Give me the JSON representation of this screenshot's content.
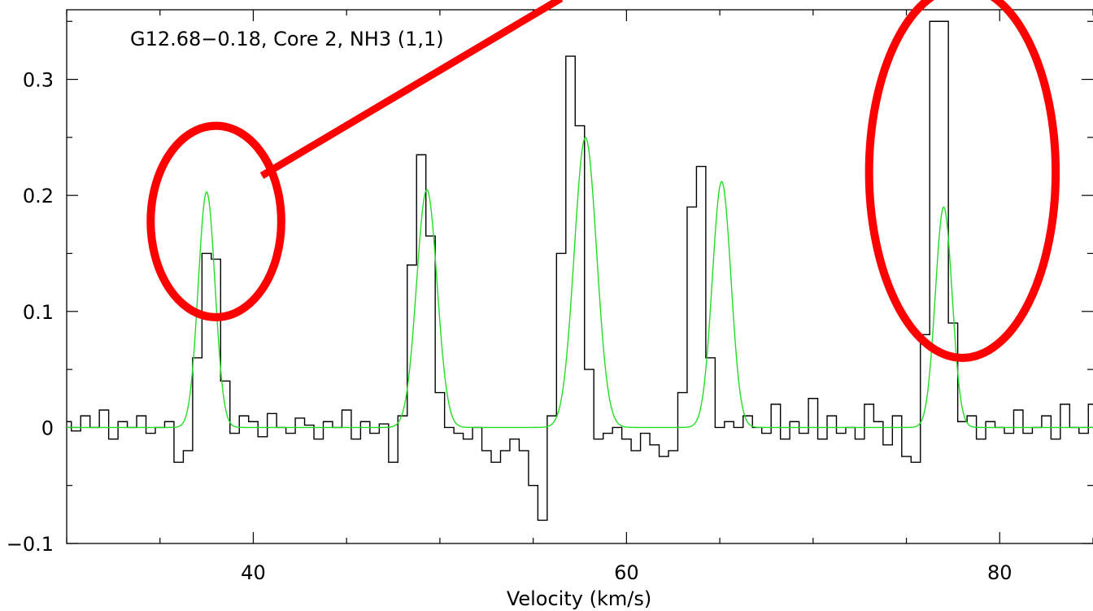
{
  "chart_data": {
    "type": "line",
    "title": "G12.68−0.18, Core 2, NH3 (1,1)",
    "xlabel": "Velocity (km/s)",
    "ylabel": "",
    "xlim": [
      30,
      85
    ],
    "ylim": [
      -0.1,
      0.36
    ],
    "x_ticks": [
      40,
      60,
      80
    ],
    "x_tick_labels": [
      "40",
      "60",
      "80"
    ],
    "y_ticks": [
      -0.1,
      0,
      0.1,
      0.2,
      0.3
    ],
    "y_tick_labels": [
      "−0.1",
      "0",
      "0.1",
      "0.2",
      "0.3"
    ],
    "series": [
      {
        "style": "histogram-step",
        "color": "#000000",
        "x": [
          30.0,
          30.5,
          31.0,
          31.5,
          32.0,
          32.5,
          33.0,
          33.5,
          34.0,
          34.5,
          35.0,
          35.5,
          36.0,
          36.5,
          37.0,
          37.5,
          38.0,
          38.5,
          39.0,
          39.5,
          40.0,
          40.5,
          41.0,
          41.5,
          42.0,
          42.5,
          43.0,
          43.5,
          44.0,
          44.5,
          45.0,
          45.5,
          46.0,
          46.5,
          47.0,
          47.5,
          48.0,
          48.5,
          49.0,
          49.5,
          50.0,
          50.5,
          51.0,
          51.5,
          52.0,
          52.5,
          53.0,
          53.5,
          54.0,
          54.5,
          55.0,
          55.5,
          56.0,
          56.5,
          57.0,
          57.5,
          58.0,
          58.5,
          59.0,
          59.5,
          60.0,
          60.5,
          61.0,
          61.5,
          62.0,
          62.5,
          63.0,
          63.5,
          64.0,
          64.5,
          65.0,
          65.5,
          66.0,
          66.5,
          67.0,
          67.5,
          68.0,
          68.5,
          69.0,
          69.5,
          70.0,
          70.5,
          71.0,
          71.5,
          72.0,
          72.5,
          73.0,
          73.5,
          74.0,
          74.5,
          75.0,
          75.5,
          76.0,
          76.5,
          77.0,
          77.5,
          78.0,
          78.5,
          79.0,
          79.5,
          80.0,
          80.5,
          81.0,
          81.5,
          82.0,
          82.5,
          83.0,
          83.5,
          84.0,
          84.5,
          85.0
        ],
        "y": [
          0.005,
          -0.003,
          0.01,
          0.0,
          0.015,
          -0.01,
          0.005,
          0.0,
          0.01,
          -0.005,
          0.0,
          0.005,
          -0.03,
          -0.02,
          0.06,
          0.15,
          0.145,
          0.04,
          -0.005,
          0.01,
          0.005,
          -0.008,
          0.012,
          0.0,
          -0.005,
          0.008,
          0.002,
          -0.01,
          0.005,
          0.0,
          0.015,
          -0.01,
          0.005,
          -0.005,
          0.003,
          -0.03,
          0.01,
          0.14,
          0.235,
          0.165,
          0.03,
          0.0,
          -0.005,
          -0.01,
          0.0,
          -0.02,
          -0.03,
          -0.02,
          -0.01,
          -0.02,
          -0.05,
          -0.08,
          0.01,
          0.15,
          0.32,
          0.26,
          0.05,
          -0.01,
          -0.005,
          0.0,
          -0.01,
          -0.02,
          -0.005,
          -0.015,
          -0.025,
          -0.02,
          0.03,
          0.19,
          0.225,
          0.06,
          0.0,
          0.005,
          0.0,
          0.01,
          0.0,
          -0.005,
          0.02,
          -0.01,
          0.005,
          -0.005,
          0.025,
          -0.01,
          0.01,
          -0.005,
          0.0,
          -0.01,
          0.02,
          0.005,
          -0.015,
          0.01,
          -0.025,
          -0.03,
          0.08,
          0.35,
          0.35,
          0.09,
          0.005,
          0.01,
          -0.01,
          0.005,
          0.0,
          -0.005,
          0.015,
          -0.005,
          0.0,
          0.01,
          -0.01,
          0.02,
          0.0,
          -0.005,
          0.02
        ]
      },
      {
        "style": "smooth",
        "color": "#22dd22",
        "model": "gaussians",
        "components": [
          {
            "center": 37.5,
            "amplitude": 0.203,
            "sigma": 0.45
          },
          {
            "center": 49.3,
            "amplitude": 0.205,
            "sigma": 0.55
          },
          {
            "center": 57.8,
            "amplitude": 0.25,
            "sigma": 0.6
          },
          {
            "center": 65.1,
            "amplitude": 0.212,
            "sigma": 0.5
          },
          {
            "center": 77.0,
            "amplitude": 0.19,
            "sigma": 0.45
          }
        ]
      }
    ],
    "annotations": [
      {
        "shape": "ellipse",
        "color": "#ff0000",
        "encloses_x": [
          34.5,
          41.5
        ],
        "encloses_y": [
          0.095,
          0.26
        ]
      },
      {
        "shape": "ellipse",
        "color": "#ff0000",
        "encloses_x": [
          73.0,
          83.0
        ],
        "encloses_y": [
          0.06,
          0.38
        ]
      },
      {
        "shape": "line",
        "color": "#ff0000",
        "direction": "upper-right, leaving the frame"
      }
    ],
    "grid": false,
    "legend": "none"
  }
}
